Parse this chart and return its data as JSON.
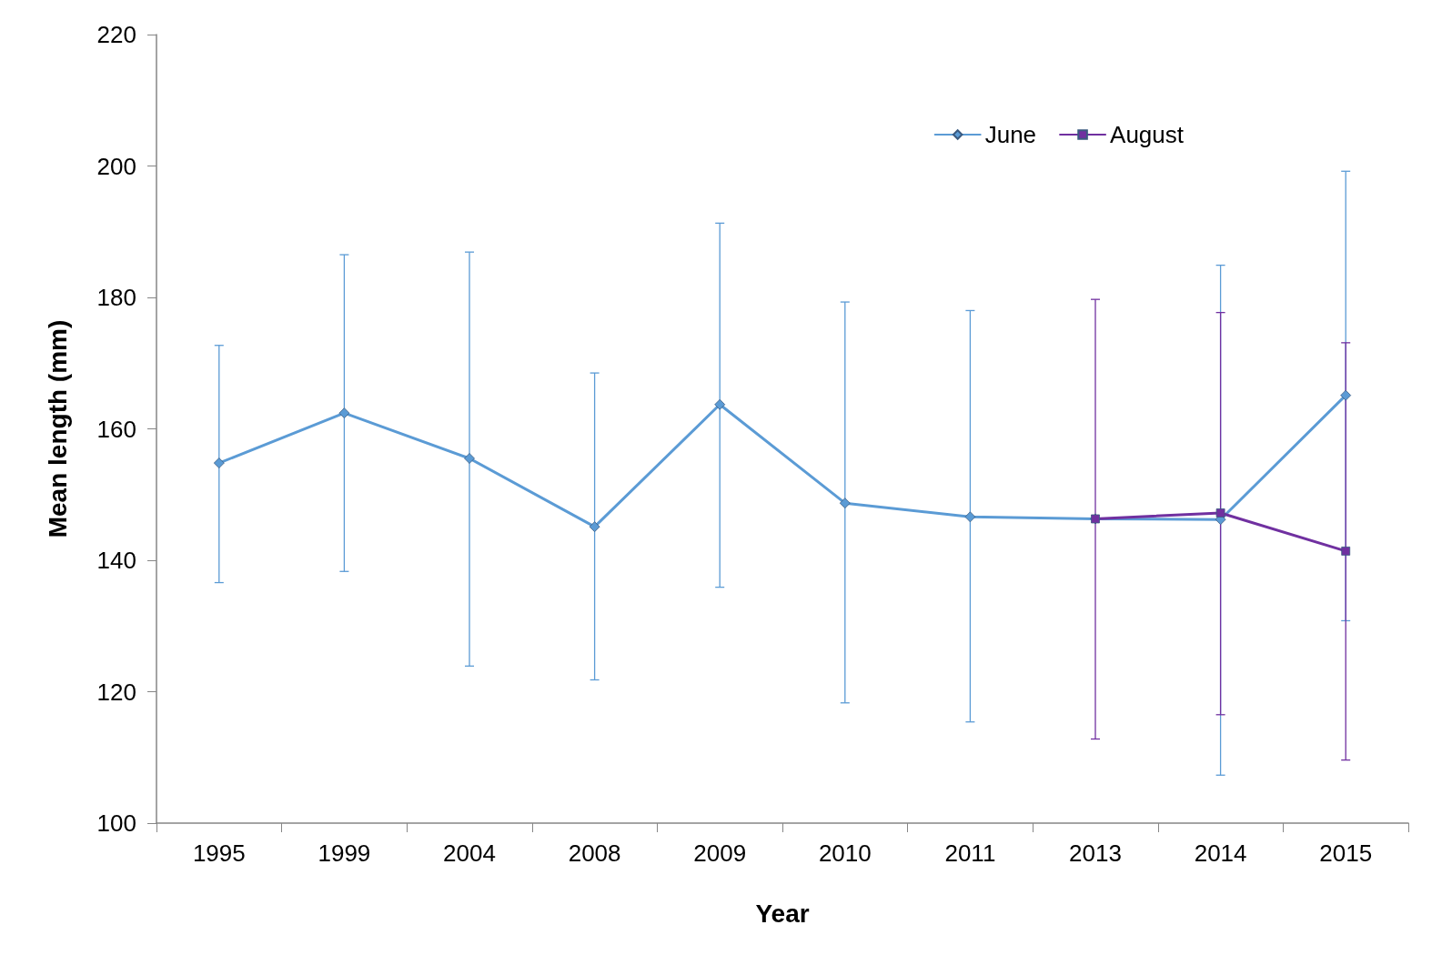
{
  "chart_data": {
    "type": "line",
    "xlabel": "Year",
    "ylabel": "Mean length (mm)",
    "categories": [
      "1995",
      "1999",
      "2004",
      "2008",
      "2009",
      "2010",
      "2011",
      "2013",
      "2014",
      "2015"
    ],
    "series": [
      {
        "name": "June",
        "color": "#5b9bd5",
        "marker": "diamond",
        "values": [
          154.8,
          162.4,
          155.5,
          145.1,
          163.7,
          148.7,
          146.6,
          146.3,
          146.2,
          165.1
        ],
        "errors": [
          [
            136.6,
            172.7
          ],
          [
            138.3,
            186.5
          ],
          [
            123.9,
            186.9
          ],
          [
            121.8,
            168.5
          ],
          [
            135.9,
            191.3
          ],
          [
            118.3,
            179.3
          ],
          [
            115.4,
            178.0
          ],
          null,
          [
            107.3,
            184.9
          ],
          [
            130.8,
            199.2
          ]
        ]
      },
      {
        "name": "August",
        "color": "#7030a0",
        "marker": "square",
        "values": [
          null,
          null,
          null,
          null,
          null,
          null,
          null,
          146.3,
          147.2,
          141.4
        ],
        "errors": [
          null,
          null,
          null,
          null,
          null,
          null,
          null,
          [
            112.8,
            179.7
          ],
          [
            116.5,
            177.7
          ],
          [
            109.6,
            173.1
          ]
        ]
      }
    ],
    "ylim": [
      100,
      220
    ],
    "yticks": [
      100,
      120,
      140,
      160,
      180,
      200,
      220
    ],
    "grid": false,
    "legend": "top right",
    "line_style": "solid"
  }
}
